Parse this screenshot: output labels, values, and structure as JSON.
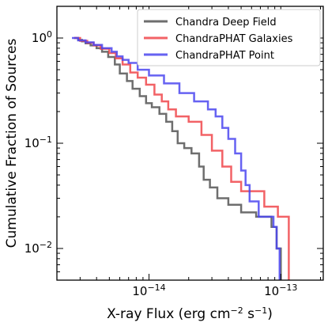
{
  "chart_data": {
    "type": "line",
    "step": true,
    "xscale": "log",
    "yscale": "log",
    "xlim": [
      2e-15,
      2.1e-13
    ],
    "ylim": [
      0.005,
      2.0
    ],
    "xlabel_main": "X-ray Flux (erg cm",
    "xlabel_exp1": "−2",
    "xlabel_mid": " s",
    "xlabel_exp2": "−1",
    "xlabel_end": ")",
    "ylabel": "Cumulative Fraction of Sources",
    "grid": false,
    "legend_position": "top-right",
    "x_ticks": [
      {
        "value": 1e-14,
        "base": "10",
        "exp": "−14"
      },
      {
        "value": 1e-13,
        "base": "10",
        "exp": "−13"
      }
    ],
    "y_ticks": [
      {
        "value": 1.0,
        "base": "10",
        "exp": "0"
      },
      {
        "value": 0.1,
        "base": "10",
        "exp": "−1"
      },
      {
        "value": 0.01,
        "base": "10",
        "exp": "−2"
      }
    ],
    "series": [
      {
        "name": "Chandra Deep Field",
        "color": "#555555",
        "points": [
          [
            2.7e-15,
            1.0
          ],
          [
            2.9e-15,
            0.96
          ],
          [
            3.1e-15,
            0.93
          ],
          [
            3.3e-15,
            0.89
          ],
          [
            3.6e-15,
            0.85
          ],
          [
            4e-15,
            0.8
          ],
          [
            4.4e-15,
            0.74
          ],
          [
            4.9e-15,
            0.66
          ],
          [
            5.5e-15,
            0.56
          ],
          [
            6e-15,
            0.46
          ],
          [
            6.8e-15,
            0.39
          ],
          [
            7.5e-15,
            0.33
          ],
          [
            8.5e-15,
            0.28
          ],
          [
            9.5e-15,
            0.24
          ],
          [
            1.05e-14,
            0.22
          ],
          [
            1.2e-14,
            0.19
          ],
          [
            1.35e-14,
            0.16
          ],
          [
            1.5e-14,
            0.13
          ],
          [
            1.65e-14,
            0.1
          ],
          [
            1.85e-14,
            0.09
          ],
          [
            2.1e-14,
            0.08
          ],
          [
            2.4e-14,
            0.06
          ],
          [
            2.6e-14,
            0.045
          ],
          [
            2.9e-14,
            0.038
          ],
          [
            3.3e-14,
            0.03
          ],
          [
            4e-14,
            0.026
          ],
          [
            5e-14,
            0.022
          ],
          [
            6.5e-14,
            0.02
          ],
          [
            8.5e-14,
            0.016
          ],
          [
            9.3e-14,
            0.01
          ],
          [
            1e-13,
            0.0065
          ],
          [
            1e-13,
            0.005
          ]
        ]
      },
      {
        "name": "ChandraPHAT Galaxies",
        "color": "#f0464b",
        "points": [
          [
            2.7e-15,
            1.0
          ],
          [
            3e-15,
            0.94
          ],
          [
            3.4e-15,
            0.9
          ],
          [
            3.8e-15,
            0.85
          ],
          [
            4.3e-15,
            0.79
          ],
          [
            5e-15,
            0.72
          ],
          [
            5.6e-15,
            0.64
          ],
          [
            6.3e-15,
            0.56
          ],
          [
            7.2e-15,
            0.47
          ],
          [
            8.2e-15,
            0.42
          ],
          [
            9.5e-15,
            0.36
          ],
          [
            1.1e-14,
            0.29
          ],
          [
            1.25e-14,
            0.25
          ],
          [
            1.4e-14,
            0.21
          ],
          [
            1.6e-14,
            0.18
          ],
          [
            2e-14,
            0.16
          ],
          [
            2.5e-14,
            0.12
          ],
          [
            3e-14,
            0.085
          ],
          [
            3.6e-14,
            0.06
          ],
          [
            4.2e-14,
            0.043
          ],
          [
            5e-14,
            0.035
          ],
          [
            6.5e-14,
            0.035
          ],
          [
            7.5e-14,
            0.025
          ],
          [
            9.5e-14,
            0.02
          ],
          [
            1.15e-13,
            0.011
          ],
          [
            1.15e-13,
            0.005
          ]
        ]
      },
      {
        "name": "ChandraPHAT Point",
        "color": "#4b46f0",
        "points": [
          [
            2.6e-15,
            1.0
          ],
          [
            2.9e-15,
            0.95
          ],
          [
            3.3e-15,
            0.91
          ],
          [
            3.8e-15,
            0.86
          ],
          [
            4.4e-15,
            0.8
          ],
          [
            5.2e-15,
            0.74
          ],
          [
            5.7e-15,
            0.67
          ],
          [
            6.3e-15,
            0.62
          ],
          [
            7e-15,
            0.58
          ],
          [
            8.2e-15,
            0.5
          ],
          [
            1e-14,
            0.44
          ],
          [
            1.3e-14,
            0.37
          ],
          [
            1.7e-14,
            0.3
          ],
          [
            2.2e-14,
            0.25
          ],
          [
            2.8e-14,
            0.21
          ],
          [
            3.2e-14,
            0.18
          ],
          [
            3.6e-14,
            0.14
          ],
          [
            4e-14,
            0.11
          ],
          [
            4.5e-14,
            0.08
          ],
          [
            5e-14,
            0.055
          ],
          [
            5.4e-14,
            0.04
          ],
          [
            5.8e-14,
            0.028
          ],
          [
            6.8e-14,
            0.02
          ],
          [
            8.8e-14,
            0.016
          ],
          [
            9.3e-14,
            0.01
          ],
          [
            9.8e-14,
            0.006
          ],
          [
            9.8e-14,
            0.005
          ]
        ]
      }
    ]
  }
}
